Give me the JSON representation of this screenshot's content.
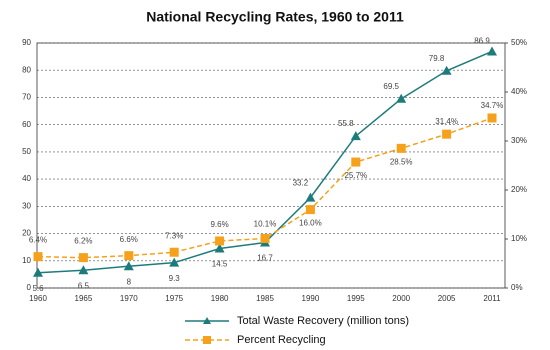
{
  "chart_data": {
    "type": "line",
    "title": "National Recycling Rates, 1960 to 2011",
    "categories": [
      "1960",
      "1965",
      "1970",
      "1975",
      "1980",
      "1985",
      "1990",
      "1995",
      "2000",
      "2005",
      "2011"
    ],
    "series": [
      {
        "name": "Total Waste Recovery (million tons)",
        "color": "#1e7b7b",
        "marker": "triangle",
        "values": [
          5.6,
          6.5,
          8.0,
          9.3,
          14.5,
          16.7,
          33.2,
          55.8,
          69.5,
          79.8,
          86.9
        ]
      },
      {
        "name": "Percent Recycling",
        "color": "#f5a11c",
        "marker": "square",
        "axis": "y2",
        "dashed": true,
        "values": [
          6.4,
          6.2,
          6.6,
          7.3,
          9.6,
          10.1,
          16.0,
          25.7,
          28.5,
          31.4,
          34.7
        ],
        "value_labels": [
          "6.4%",
          "6.2%",
          "6.6%",
          "7.3%",
          "9.6%",
          "10.1%",
          "16.0%",
          "25.7%",
          "28.5%",
          "31.4%",
          "34.7%"
        ]
      }
    ],
    "ylim": [
      0,
      90
    ],
    "yticks": [
      0,
      10,
      20,
      30,
      40,
      50,
      60,
      70,
      80,
      90
    ],
    "y2lim": [
      0,
      50
    ],
    "y2ticks": [
      {
        "value": 0,
        "label": "0%"
      },
      {
        "value": 10,
        "label": "10%"
      },
      {
        "value": 20,
        "label": "20%"
      },
      {
        "value": 30,
        "label": "30%"
      },
      {
        "value": 40,
        "label": "40%"
      },
      {
        "value": 50,
        "label": "50%"
      }
    ],
    "grid": true,
    "legend": "bottom"
  }
}
